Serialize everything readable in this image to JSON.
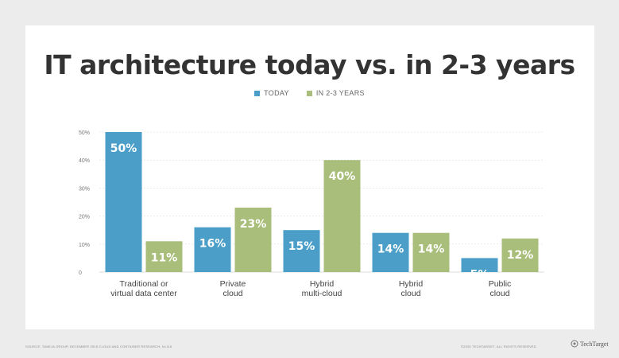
{
  "chart_data": {
    "type": "bar",
    "title": "IT architecture today vs. in 2-3 years",
    "categories": [
      [
        "Traditional or",
        "virtual data center"
      ],
      [
        "Private",
        "cloud"
      ],
      [
        "Hybrid",
        "multi-cloud"
      ],
      [
        "Hybrid",
        "cloud"
      ],
      [
        "Public",
        "cloud"
      ]
    ],
    "series": [
      {
        "name": "TODAY",
        "color": "#4a9ec7",
        "values": [
          50,
          16,
          15,
          14,
          5
        ]
      },
      {
        "name": "IN 2-3 YEARS",
        "color": "#a9be7a",
        "values": [
          11,
          23,
          40,
          14,
          12
        ]
      }
    ],
    "y_ticks": [
      0,
      10,
      20,
      30,
      40,
      50
    ],
    "y_tick_labels": [
      "0",
      "10%",
      "20%",
      "30%",
      "40%",
      "50%"
    ],
    "ylim": [
      0,
      50
    ],
    "grid": true,
    "value_suffix": "%"
  },
  "footer": {
    "source": "SOURCE: TANEJA GROUP, DECEMBER 2019 CLOUD AND CONTAINER RESEARCH; N=115",
    "copyright": "©2020 TECHTARGET. ALL RIGHTS RESERVED",
    "brand": "TechTarget"
  }
}
